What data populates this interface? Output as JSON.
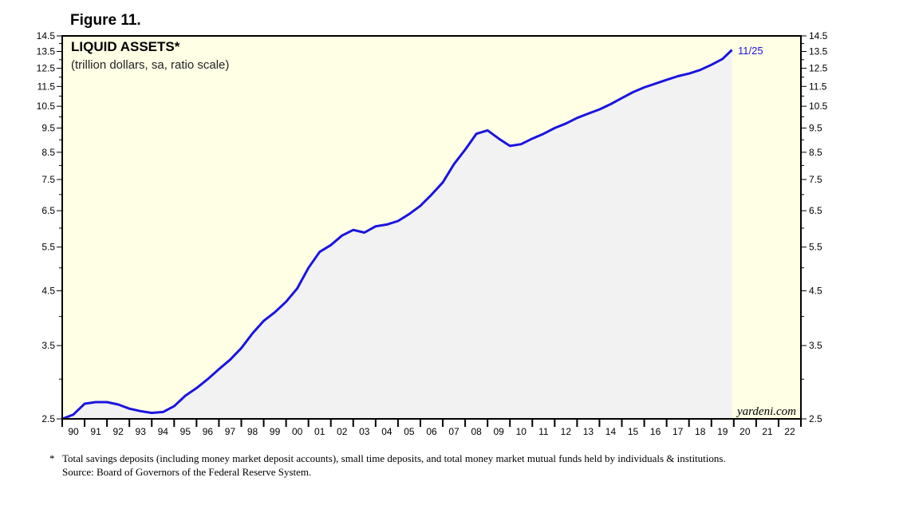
{
  "figure_label": "Figure 11.",
  "footnote": {
    "marker": "*",
    "text": "Total savings deposits (including money market deposit accounts), small time deposits, and total money market mutual funds held by individuals & institutions.",
    "source": "Source: Board of Governors of the Federal Reserve System."
  },
  "colors": {
    "plot_background": "#ffffe6",
    "area_fill": "#f2f2f2",
    "line": "#1a14e0",
    "annotation": "#1a14e0"
  },
  "chart_data": {
    "type": "area",
    "title": "LIQUID ASSETS*",
    "subtitle": "(trillion dollars, sa, ratio scale)",
    "scale": "log",
    "ylim": [
      2.5,
      14.5
    ],
    "xlim": [
      1990,
      2023
    ],
    "y_ticks": [
      2.5,
      3.5,
      4.5,
      5.5,
      6.5,
      7.5,
      8.5,
      9.5,
      10.5,
      11.5,
      12.5,
      13.5,
      14.5
    ],
    "y_tick_labels": [
      "2.5",
      "3.5",
      "4.5",
      "5.5",
      "6.5",
      "7.5",
      "8.5",
      "9.5",
      "10.5",
      "11.5",
      "12.5",
      "13.5",
      "14.5"
    ],
    "x_tick_labels": [
      "90",
      "91",
      "92",
      "93",
      "94",
      "95",
      "96",
      "97",
      "98",
      "99",
      "00",
      "01",
      "02",
      "03",
      "04",
      "05",
      "06",
      "07",
      "08",
      "09",
      "10",
      "11",
      "12",
      "13",
      "14",
      "15",
      "16",
      "17",
      "18",
      "19",
      "20",
      "21",
      "22"
    ],
    "annotation": "11/25",
    "credit": "yardeni.com",
    "series": [
      {
        "name": "Liquid Assets",
        "x": [
          1990.0,
          1990.5,
          1991.0,
          1991.5,
          1992.0,
          1992.5,
          1993.0,
          1993.5,
          1994.0,
          1994.5,
          1995.0,
          1995.5,
          1996.0,
          1996.5,
          1997.0,
          1997.5,
          1998.0,
          1998.5,
          1999.0,
          1999.5,
          2000.0,
          2000.5,
          2001.0,
          2001.5,
          2002.0,
          2002.5,
          2003.0,
          2003.5,
          2004.0,
          2004.5,
          2005.0,
          2005.5,
          2006.0,
          2006.5,
          2007.0,
          2007.5,
          2008.0,
          2008.5,
          2009.0,
          2009.5,
          2010.0,
          2010.5,
          2011.0,
          2011.5,
          2012.0,
          2012.5,
          2013.0,
          2013.5,
          2014.0,
          2014.5,
          2015.0,
          2015.5,
          2016.0,
          2016.5,
          2017.0,
          2017.5,
          2018.0,
          2018.5,
          2019.0,
          2019.5,
          2019.92
        ],
        "values": [
          2.5,
          2.55,
          2.68,
          2.7,
          2.7,
          2.67,
          2.62,
          2.59,
          2.57,
          2.58,
          2.65,
          2.78,
          2.88,
          3.0,
          3.14,
          3.28,
          3.46,
          3.7,
          3.92,
          4.08,
          4.28,
          4.55,
          5.0,
          5.38,
          5.55,
          5.8,
          5.95,
          5.88,
          6.05,
          6.1,
          6.2,
          6.4,
          6.65,
          7.0,
          7.4,
          8.05,
          8.6,
          9.25,
          9.4,
          9.05,
          8.75,
          8.82,
          9.05,
          9.25,
          9.5,
          9.7,
          9.95,
          10.15,
          10.35,
          10.6,
          10.9,
          11.2,
          11.45,
          11.65,
          11.85,
          12.05,
          12.2,
          12.4,
          12.7,
          13.05,
          13.6
        ]
      }
    ]
  }
}
